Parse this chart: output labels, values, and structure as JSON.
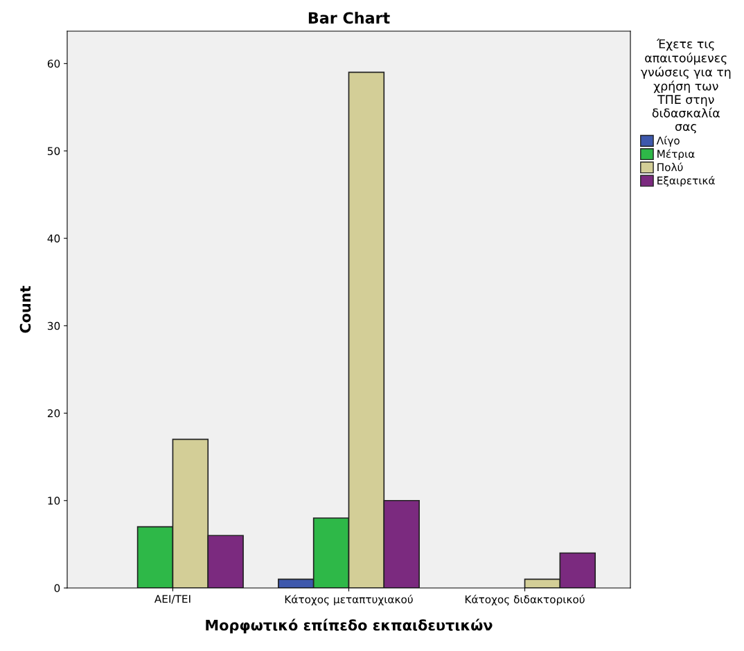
{
  "chart_data": {
    "type": "bar",
    "title": "Bar Chart",
    "xlabel": "Μορφωτικό επίπεδο εκπαιδευτικών",
    "ylabel": "Count",
    "legend_title": "Έχετε τις\nαπαιτούμενες\nγνώσεις για τη\nχρήση των\nΤΠΕ στην\nδιδασκαλία\nσας",
    "categories": [
      "ΑΕΙ/ΤΕΙ",
      "Κάτοχος μεταπτυχιακού",
      "Κάτοχος διδακτορικού"
    ],
    "series": [
      {
        "name": "Λίγο",
        "color": "#3e58ac",
        "values": [
          null,
          1,
          null
        ]
      },
      {
        "name": "Μέτρια",
        "color": "#2eb848",
        "values": [
          7,
          8,
          null
        ]
      },
      {
        "name": "Πολύ",
        "color": "#d3ce97",
        "values": [
          17,
          59,
          1
        ]
      },
      {
        "name": "Εξαιρετικά",
        "color": "#7b2a7f",
        "values": [
          6,
          10,
          4
        ]
      }
    ],
    "ylim": [
      0,
      63.7
    ],
    "yticks": [
      0,
      10,
      20,
      30,
      40,
      50,
      60
    ],
    "grid": false,
    "legend": "right"
  }
}
